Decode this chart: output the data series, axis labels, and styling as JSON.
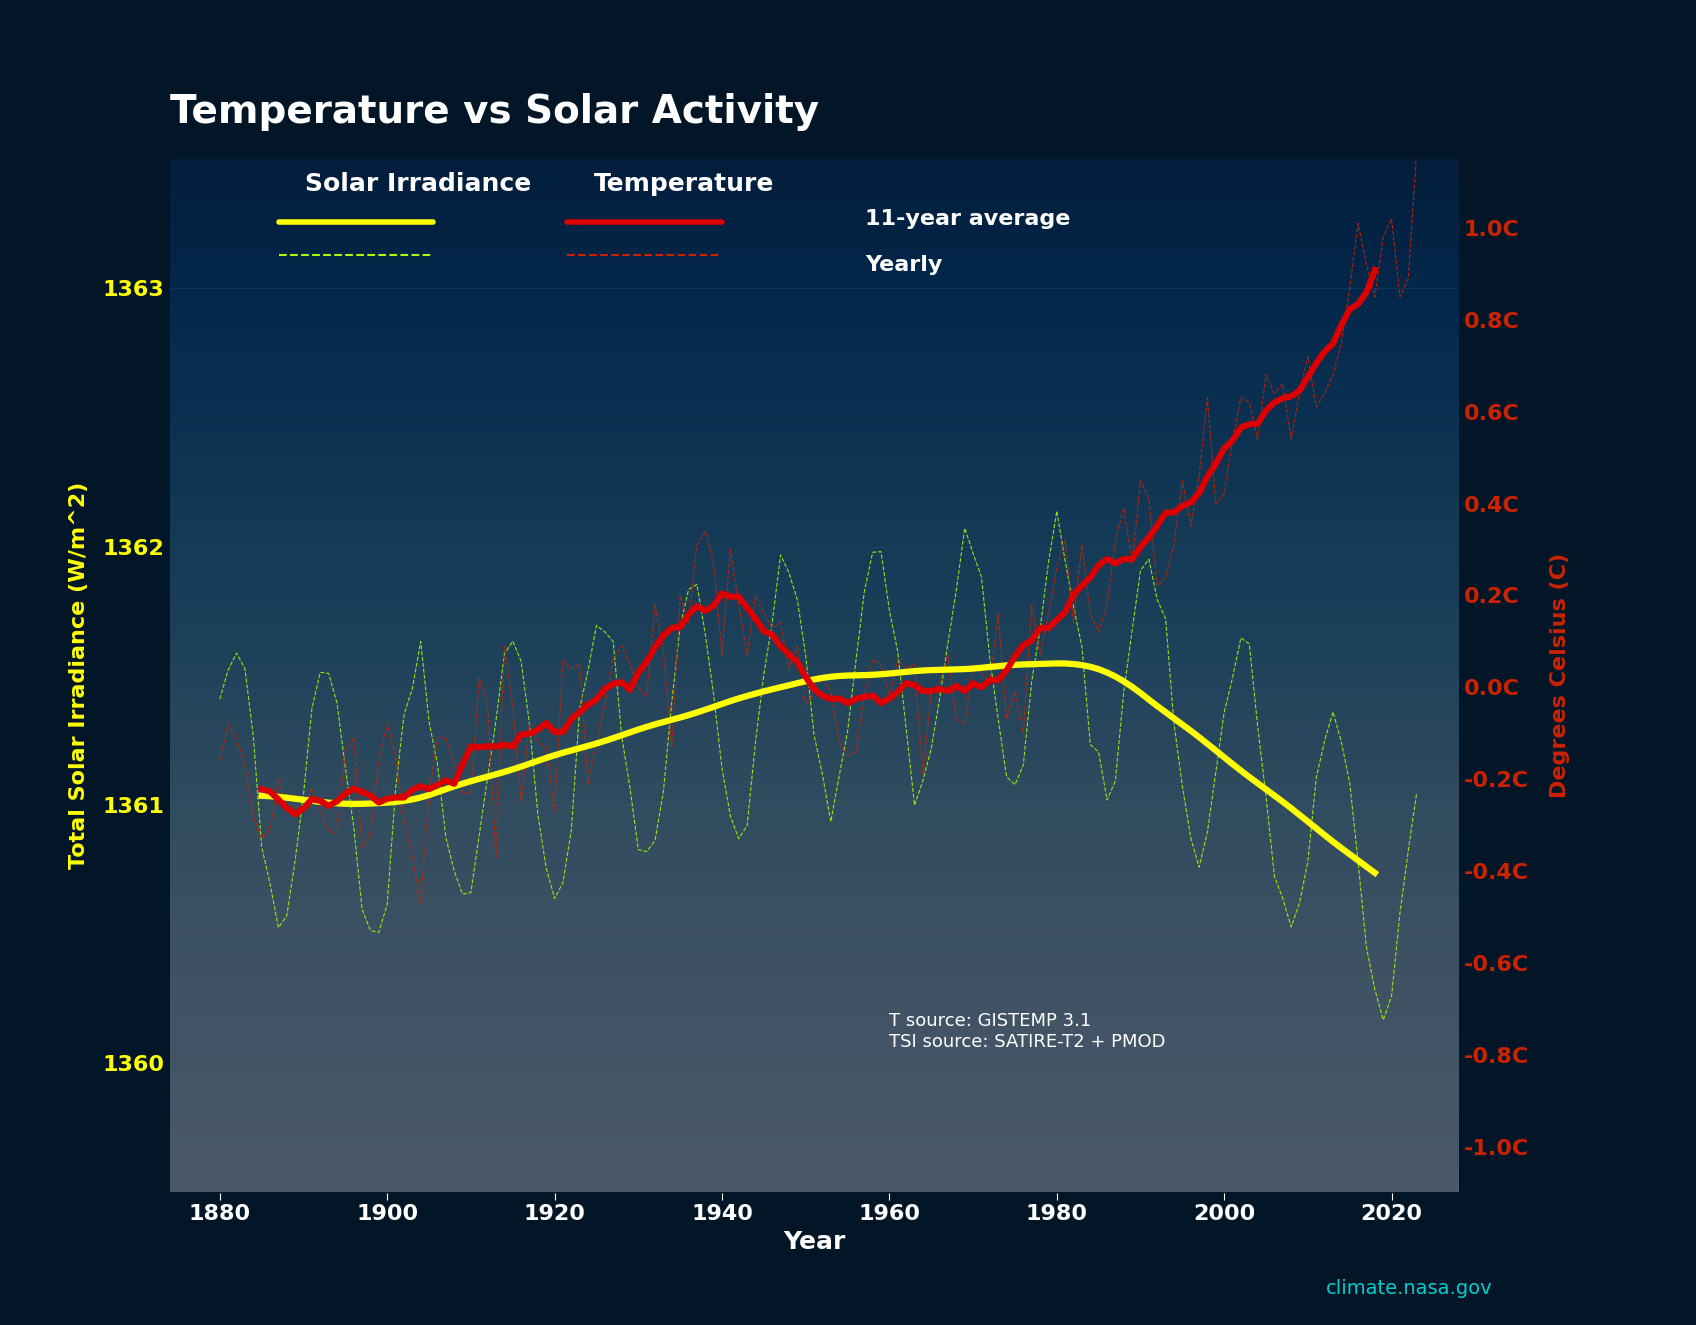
{
  "title": "Temperature vs Solar Activity",
  "background_color": "#021628",
  "bg_gradient_top": "#021628",
  "bg_gradient_bottom": "#062540",
  "left_ylabel": "Total Solar Irradiance (W/m^2)",
  "right_ylabel": "Degrees Celsius (C)",
  "xlabel": "Year",
  "left_color": "#ffff00",
  "right_color": "#cc2200",
  "tsi_ylim": [
    1359.5,
    1363.5
  ],
  "temp_ylim": [
    -1.1,
    1.15
  ],
  "tsi_yticks": [
    1360,
    1361,
    1362,
    1363
  ],
  "temp_yticks": [
    -1.0,
    -0.8,
    -0.6,
    -0.4,
    -0.2,
    0.0,
    0.2,
    0.4,
    0.6,
    0.8,
    1.0
  ],
  "xlim": [
    1874,
    2028
  ],
  "xticks": [
    1880,
    1900,
    1920,
    1940,
    1960,
    1980,
    2000,
    2020
  ],
  "watermark": "climate.nasa.gov",
  "source_text": "T source: GISTEMP 3.1\nTSI source: SATIRE-T2 + PMOD",
  "legend_items": [
    "Solar Irradiance",
    "Temperature",
    "11-year average",
    "Yearly"
  ],
  "title_fontsize": 28,
  "axis_fontsize": 16,
  "tick_fontsize": 16,
  "legend_fontsize": 18
}
